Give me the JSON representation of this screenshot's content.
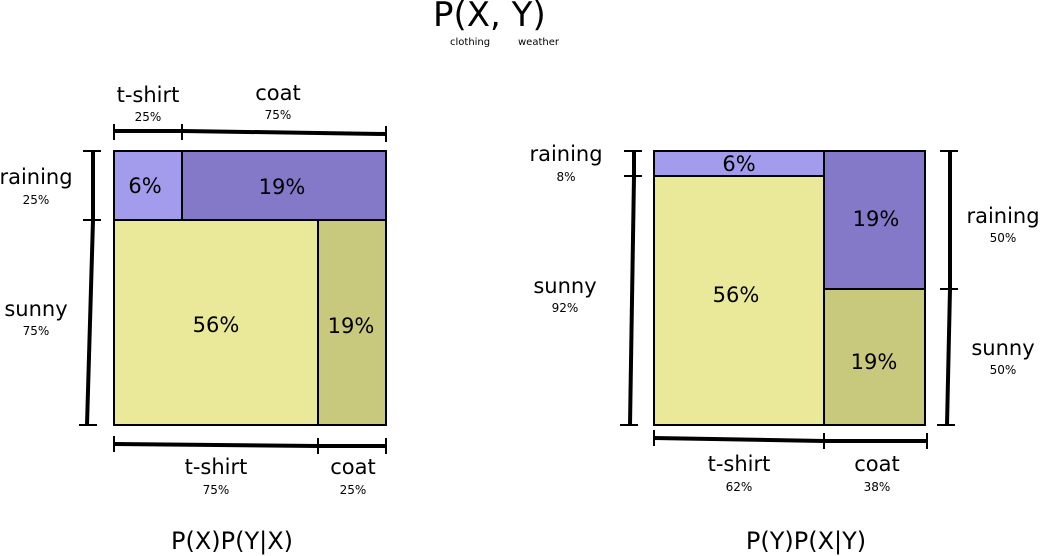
{
  "title": {
    "text": "P(X, Y)",
    "x_sub": "clothing",
    "y_sub": "weather"
  },
  "colors": {
    "light_purple": "#a39bec",
    "purple": "#8379c8",
    "light_yellow": "#e9e999",
    "olive": "#c8c97c"
  },
  "left": {
    "caption": "P(X)P(Y|X)",
    "top_labels": {
      "tshirt": {
        "name": "t-shirt",
        "pct": "25%"
      },
      "coat": {
        "name": "coat",
        "pct": "75%"
      }
    },
    "side_labels": {
      "raining": {
        "name": "raining",
        "pct": "25%"
      },
      "sunny": {
        "name": "sunny",
        "pct": "75%"
      }
    },
    "bottom_labels": {
      "tshirt": {
        "name": "t-shirt",
        "pct": "75%"
      },
      "coat": {
        "name": "coat",
        "pct": "25%"
      }
    },
    "cells": {
      "tshirt_raining": "6%",
      "coat_raining": "19%",
      "tshirt_sunny": "56%",
      "coat_sunny": "19%"
    }
  },
  "right": {
    "caption": "P(Y)P(X|Y)",
    "left_labels": {
      "raining": {
        "name": "raining",
        "pct": "8%"
      },
      "sunny": {
        "name": "sunny",
        "pct": "92%"
      }
    },
    "right_labels": {
      "raining": {
        "name": "raining",
        "pct": "50%"
      },
      "sunny": {
        "name": "sunny",
        "pct": "50%"
      }
    },
    "bottom_labels": {
      "tshirt": {
        "name": "t-shirt",
        "pct": "62%"
      },
      "coat": {
        "name": "coat",
        "pct": "38%"
      }
    },
    "cells": {
      "raining_tshirt": "6%",
      "sunny_tshirt": "56%",
      "raining_coat": "19%",
      "sunny_coat": "19%"
    }
  }
}
